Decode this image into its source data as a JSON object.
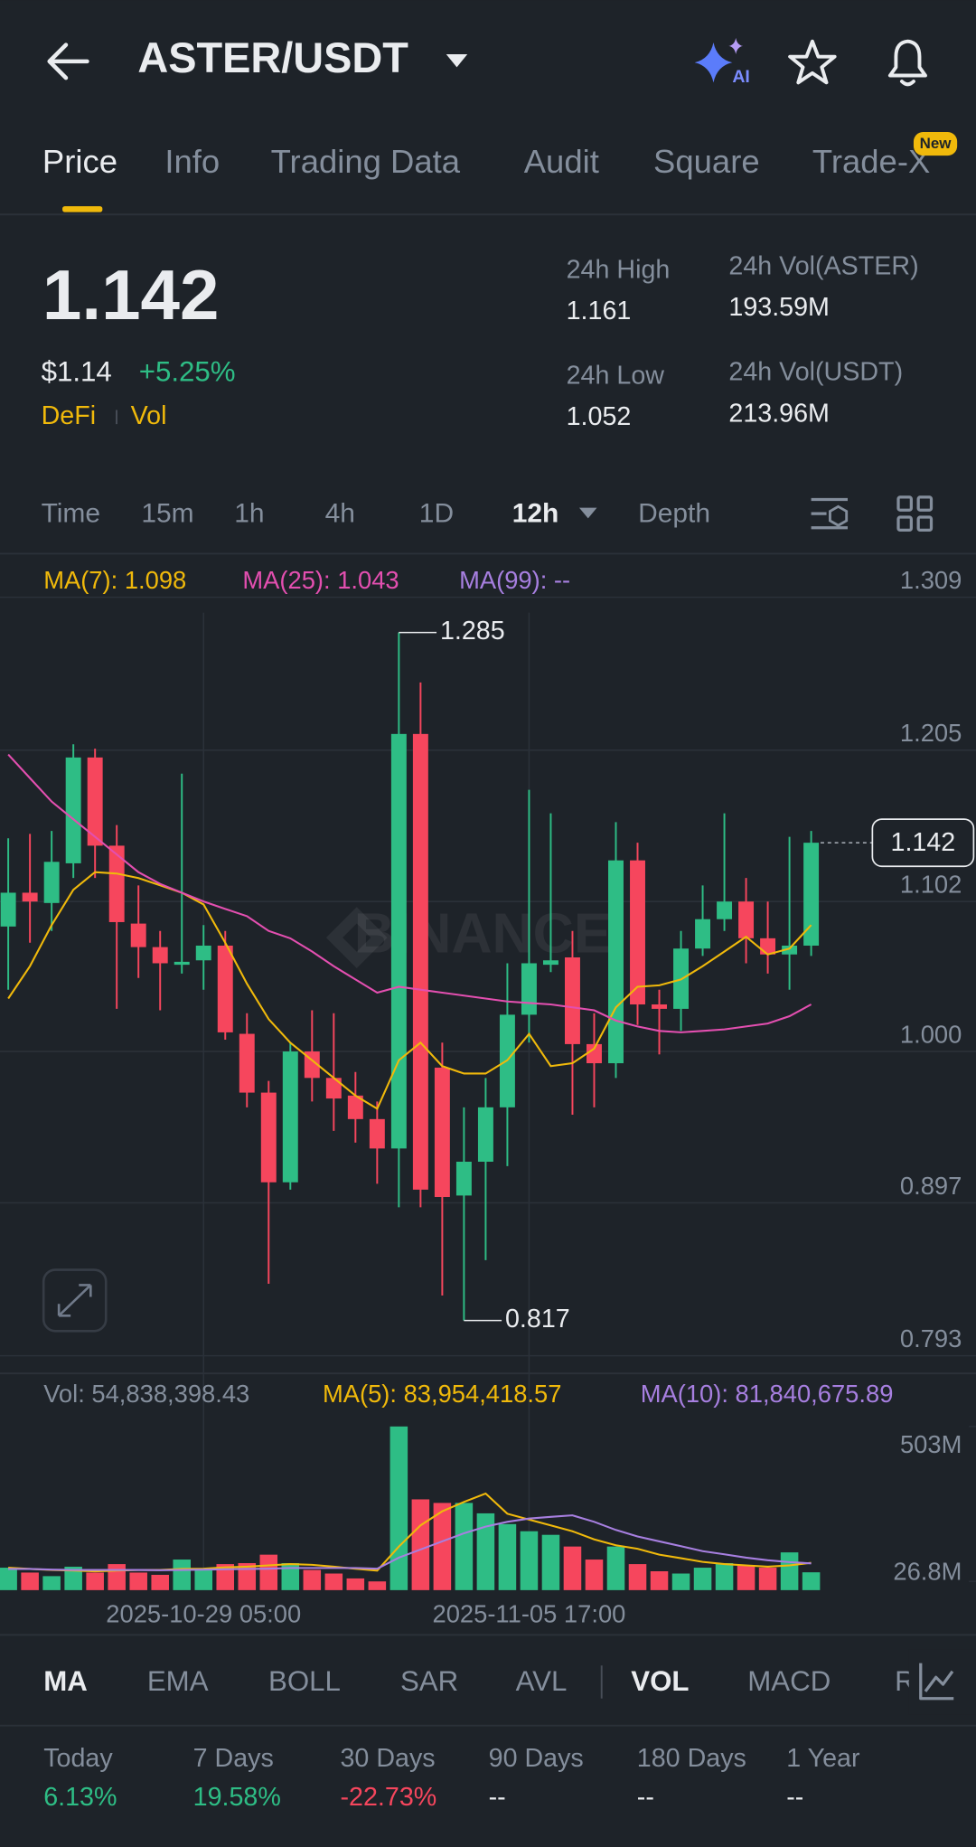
{
  "header": {
    "pair": "ASTER/USDT",
    "ai": "AI"
  },
  "tabs": [
    "Price",
    "Info",
    "Trading Data",
    "Audit",
    "Square",
    "Trade-X"
  ],
  "new_badge": "New",
  "ticker": {
    "price": "1.142",
    "usd": "$1.14",
    "change": "+5.25%",
    "tags": [
      "DeFi",
      "Vol"
    ],
    "stats": [
      {
        "label": "24h High",
        "value": "1.161"
      },
      {
        "label": "24h Vol(ASTER)",
        "value": "193.59M"
      },
      {
        "label": "24h Low",
        "value": "1.052"
      },
      {
        "label": "24h Vol(USDT)",
        "value": "213.96M"
      }
    ]
  },
  "timeframes": [
    "Time",
    "15m",
    "1h",
    "4h",
    "1D",
    "12h",
    "Depth"
  ],
  "chart_data": [
    {
      "type": "candlestick",
      "watermark": "BINANCE",
      "categories": [
        null,
        null,
        null,
        null,
        null,
        null,
        null,
        null,
        null,
        "2025-10-29 05:00",
        null,
        null,
        null,
        null,
        null,
        null,
        null,
        null,
        null,
        null,
        null,
        null,
        null,
        null,
        "2025-11-05 17:00",
        null,
        null,
        null,
        null,
        null,
        null,
        null,
        null,
        null,
        null,
        null,
        null,
        null
      ],
      "open": [
        1.085,
        1.108,
        1.101,
        1.128,
        1.2,
        1.14,
        1.087,
        1.071,
        1.059,
        1.062,
        1.072,
        1.012,
        0.972,
        0.911,
        1.0,
        0.982,
        0.97,
        0.954,
        0.934,
        1.216,
        0.989,
        0.902,
        0.925,
        0.962,
        1.025,
        1.059,
        1.064,
        1.005,
        0.992,
        1.13,
        1.032,
        1.029,
        1.07,
        1.09,
        1.102,
        1.077,
        1.066,
        1.072
      ],
      "high": [
        1.145,
        1.148,
        1.15,
        1.209,
        1.206,
        1.154,
        1.113,
        1.082,
        1.189,
        1.086,
        1.082,
        1.026,
        0.98,
        1.006,
        1.028,
        1.026,
        0.986,
        0.966,
        1.285,
        1.251,
        1.006,
        0.962,
        0.982,
        1.06,
        1.178,
        1.162,
        1.082,
        1.026,
        1.156,
        1.142,
        1.042,
        1.082,
        1.113,
        1.162,
        1.118,
        1.102,
        1.146,
        1.15
      ],
      "low": [
        1.042,
        1.074,
        1.082,
        1.118,
        1.118,
        1.029,
        1.05,
        1.028,
        1.053,
        1.042,
        1.008,
        0.962,
        0.842,
        0.906,
        0.966,
        0.946,
        0.938,
        0.91,
        0.894,
        0.894,
        0.834,
        0.817,
        0.858,
        0.922,
        1.006,
        1.054,
        0.957,
        0.962,
        0.982,
        1.018,
        0.998,
        1.014,
        1.065,
        1.082,
        1.06,
        1.053,
        1.042,
        1.065
      ],
      "close": [
        1.108,
        1.102,
        1.129,
        1.2,
        1.14,
        1.088,
        1.071,
        1.06,
        1.061,
        1.072,
        1.013,
        0.972,
        0.911,
        1.0,
        0.982,
        0.968,
        0.954,
        0.934,
        1.216,
        0.906,
        0.901,
        0.925,
        0.962,
        1.025,
        1.06,
        1.062,
        1.005,
        0.992,
        1.13,
        1.032,
        1.029,
        1.07,
        1.09,
        1.102,
        1.077,
        1.066,
        1.072,
        1.142
      ],
      "up_color": "#2ebd85",
      "down_color": "#f6465d",
      "series": [
        {
          "name": "MA(7): 1.098",
          "color": "#f0b90b",
          "values": [
            1.036,
            1.058,
            1.086,
            1.11,
            1.122,
            1.121,
            1.118,
            1.113,
            1.108,
            1.1,
            1.074,
            1.046,
            1.022,
            1.006,
            0.994,
            0.982,
            0.97,
            0.961,
            0.994,
            1.006,
            0.99,
            0.985,
            0.985,
            0.994,
            1.012,
            0.99,
            0.992,
            1.002,
            1.03,
            1.044,
            1.045,
            1.049,
            1.058,
            1.068,
            1.078,
            1.066,
            1.07,
            1.086
          ]
        },
        {
          "name": "MA(25): 1.043",
          "color": "#e34fb0",
          "values": [
            1.202,
            1.186,
            1.17,
            1.158,
            1.146,
            1.134,
            1.122,
            1.114,
            1.108,
            1.102,
            1.097,
            1.092,
            1.082,
            1.077,
            1.068,
            1.058,
            1.049,
            1.04,
            1.044,
            1.042,
            1.04,
            1.038,
            1.036,
            1.034,
            1.033,
            1.032,
            1.03,
            1.028,
            1.021,
            1.017,
            1.014,
            1.013,
            1.014,
            1.015,
            1.017,
            1.019,
            1.024,
            1.032
          ]
        },
        {
          "name": "MA(99): --",
          "color": "#a77fe0",
          "values": [
            null,
            null,
            null,
            null,
            null,
            null,
            null,
            null,
            null,
            null,
            null,
            null,
            null,
            null,
            null,
            null,
            null,
            null,
            null,
            null,
            null,
            null,
            null,
            null,
            null,
            null,
            null,
            null,
            null,
            null,
            null,
            null,
            null,
            null,
            null,
            null,
            null,
            null
          ]
        }
      ],
      "ylim": [
        0.793,
        1.309
      ],
      "yticks": [
        1.309,
        1.205,
        1.102,
        {
          "value": 1,
          "label": "1.000"
        },
        0.897,
        0.793
      ],
      "grid": true
    },
    {
      "type": "bar",
      "series": [
        {
          "name": "Vol: 54,838,398.43",
          "color": "#848e9c",
          "values": [
            69,
            54,
            43,
            72,
            54,
            80,
            54,
            47,
            94,
            62,
            80,
            83,
            109,
            83,
            62,
            51,
            36,
            26.8,
            503,
            279,
            268,
            268,
            236,
            203,
            181,
            170,
            134,
            94,
            134,
            80,
            58,
            51,
            69,
            83,
            76,
            69,
            116,
            54.8
          ]
        },
        {
          "name": "MA(5): 83,954,418.57",
          "color": "#f0b90b",
          "values": [
            69,
            65,
            62,
            60,
            58,
            60,
            62,
            62,
            65,
            66,
            70,
            72,
            76,
            80,
            78,
            72,
            66,
            60,
            134,
            199,
            242,
            271,
            297,
            235,
            217,
            199,
            181,
            156,
            138,
            127,
            109,
            98,
            87,
            80,
            76,
            72,
            76,
            84
          ]
        },
        {
          "name": "MA(10): 81,840,675.89",
          "color": "#a77fe0",
          "values": [
            65,
            65,
            63,
            62,
            62,
            62,
            62,
            61,
            62,
            63,
            64,
            65,
            66,
            68,
            68,
            68,
            68,
            66,
            100,
            125,
            150,
            175,
            195,
            210,
            220,
            225,
            230,
            210,
            185,
            165,
            150,
            135,
            120,
            110,
            100,
            92,
            86,
            82
          ]
        }
      ],
      "ylim": [
        0,
        543
      ],
      "yticks": [
        {
          "value": 503,
          "label": "503M"
        },
        {
          "value": 26.8,
          "label": "26.8M"
        }
      ]
    }
  ],
  "indicators": [
    "MA",
    "EMA",
    "BOLL",
    "SAR",
    "AVL",
    "VOL",
    "MACD",
    "R"
  ],
  "performance": [
    {
      "period": "Today",
      "value": "6.13%",
      "color": "#2ebd85"
    },
    {
      "period": "7 Days",
      "value": "19.58%",
      "color": "#2ebd85"
    },
    {
      "period": "30 Days",
      "value": "-22.73%",
      "color": "#f6465d"
    },
    {
      "period": "90 Days",
      "value": "--",
      "color": "#eaecef"
    },
    {
      "period": "180 Days",
      "value": "--",
      "color": "#eaecef"
    },
    {
      "period": "1 Year",
      "value": "--",
      "color": "#eaecef"
    }
  ]
}
